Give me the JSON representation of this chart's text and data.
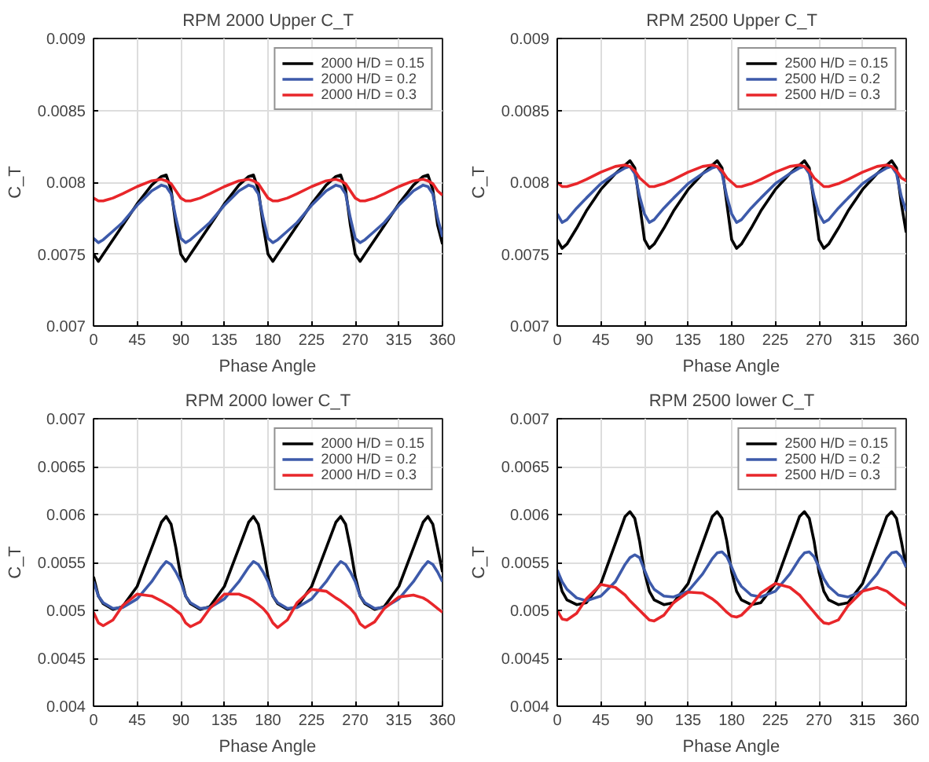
{
  "chart_data": [
    {
      "type": "line",
      "title": "RPM 2000 Upper C_T",
      "xlabel": "Phase Angle",
      "ylabel": "C_T",
      "xlim": [
        0,
        360
      ],
      "xticks": [
        0,
        45,
        90,
        135,
        180,
        225,
        270,
        315,
        360
      ],
      "ylim": [
        0.007,
        0.009
      ],
      "yticks": [
        0.007,
        0.0075,
        0.008,
        0.0085,
        0.009
      ],
      "grid": true,
      "legend": "top right",
      "x": [
        0,
        5,
        10,
        20,
        30,
        45,
        60,
        70,
        75,
        80,
        85,
        90,
        95,
        100,
        110,
        120,
        135,
        150,
        160,
        165,
        170,
        175,
        180,
        185,
        190,
        200,
        210,
        225,
        240,
        250,
        255,
        260,
        265,
        270,
        275,
        280,
        290,
        300,
        315,
        330,
        340,
        345,
        350,
        355,
        360
      ],
      "series": [
        {
          "name": "2000 H/D = 0.15",
          "color": "#000000",
          "values": [
            0.0075,
            0.00745,
            0.0075,
            0.0076,
            0.0077,
            0.00785,
            0.00798,
            0.00804,
            0.00805,
            0.00795,
            0.0077,
            0.0075,
            0.00745,
            0.0075,
            0.0076,
            0.0077,
            0.00785,
            0.00798,
            0.00804,
            0.00805,
            0.00795,
            0.0077,
            0.0075,
            0.00745,
            0.0075,
            0.0076,
            0.0077,
            0.00785,
            0.00798,
            0.00804,
            0.00805,
            0.00795,
            0.0077,
            0.0075,
            0.00745,
            0.0075,
            0.0076,
            0.0077,
            0.00785,
            0.00798,
            0.00804,
            0.00805,
            0.00795,
            0.0077,
            0.00757
          ]
        },
        {
          "name": "2000 H/D = 0.2",
          "color": "#3d5aaa",
          "values": [
            0.00761,
            0.00758,
            0.0076,
            0.00766,
            0.00772,
            0.00784,
            0.00794,
            0.00798,
            0.00797,
            0.00792,
            0.00775,
            0.00761,
            0.00758,
            0.0076,
            0.00766,
            0.00772,
            0.00784,
            0.00794,
            0.00798,
            0.00797,
            0.00792,
            0.00775,
            0.00761,
            0.00758,
            0.0076,
            0.00766,
            0.00772,
            0.00784,
            0.00794,
            0.00798,
            0.00797,
            0.00792,
            0.00775,
            0.00761,
            0.00758,
            0.0076,
            0.00766,
            0.00772,
            0.00784,
            0.00794,
            0.00798,
            0.00797,
            0.00792,
            0.00775,
            0.00762
          ]
        },
        {
          "name": "2000 H/D = 0.3",
          "color": "#e8262a",
          "values": [
            0.00789,
            0.00787,
            0.00787,
            0.00789,
            0.00792,
            0.00797,
            0.00801,
            0.00802,
            0.00801,
            0.00799,
            0.00794,
            0.00789,
            0.00787,
            0.00787,
            0.00789,
            0.00792,
            0.00797,
            0.00801,
            0.00802,
            0.00801,
            0.00799,
            0.00794,
            0.00789,
            0.00787,
            0.00787,
            0.00789,
            0.00792,
            0.00797,
            0.00801,
            0.00802,
            0.00801,
            0.00799,
            0.00794,
            0.00789,
            0.00787,
            0.00787,
            0.00789,
            0.00792,
            0.00797,
            0.00801,
            0.00802,
            0.00801,
            0.00799,
            0.00794,
            0.00791
          ]
        }
      ]
    },
    {
      "type": "line",
      "title": "RPM 2500 Upper C_T",
      "xlabel": "Phase Angle",
      "ylabel": "C_T",
      "xlim": [
        0,
        360
      ],
      "xticks": [
        0,
        45,
        90,
        135,
        180,
        225,
        270,
        315,
        360
      ],
      "ylim": [
        0.007,
        0.009
      ],
      "yticks": [
        0.007,
        0.0075,
        0.008,
        0.0085,
        0.009
      ],
      "grid": true,
      "legend": "top right",
      "x": [
        0,
        5,
        10,
        20,
        30,
        45,
        60,
        70,
        75,
        80,
        85,
        90,
        95,
        100,
        110,
        120,
        135,
        150,
        160,
        165,
        170,
        175,
        180,
        185,
        190,
        200,
        210,
        225,
        240,
        250,
        255,
        260,
        265,
        270,
        275,
        280,
        290,
        300,
        315,
        330,
        340,
        345,
        350,
        355,
        360
      ],
      "series": [
        {
          "name": "2500 H/D = 0.15",
          "color": "#000000",
          "values": [
            0.0076,
            0.00754,
            0.00757,
            0.00768,
            0.0078,
            0.00795,
            0.00806,
            0.00812,
            0.00815,
            0.0081,
            0.00785,
            0.0076,
            0.00754,
            0.00757,
            0.00768,
            0.0078,
            0.00795,
            0.00806,
            0.00812,
            0.00815,
            0.0081,
            0.00785,
            0.0076,
            0.00754,
            0.00757,
            0.00768,
            0.0078,
            0.00795,
            0.00806,
            0.00812,
            0.00815,
            0.0081,
            0.00785,
            0.0076,
            0.00754,
            0.00757,
            0.00768,
            0.0078,
            0.00795,
            0.00806,
            0.00812,
            0.00815,
            0.0081,
            0.00785,
            0.00765
          ]
        },
        {
          "name": "2500 H/D = 0.2",
          "color": "#3d5aaa",
          "values": [
            0.00778,
            0.00772,
            0.00774,
            0.00782,
            0.00789,
            0.00799,
            0.00806,
            0.0081,
            0.00811,
            0.00806,
            0.0079,
            0.00778,
            0.00772,
            0.00774,
            0.00782,
            0.00789,
            0.00799,
            0.00806,
            0.0081,
            0.00811,
            0.00806,
            0.0079,
            0.00778,
            0.00772,
            0.00774,
            0.00782,
            0.00789,
            0.00799,
            0.00806,
            0.0081,
            0.00811,
            0.00806,
            0.0079,
            0.00778,
            0.00772,
            0.00774,
            0.00782,
            0.00789,
            0.00799,
            0.00806,
            0.0081,
            0.00811,
            0.00806,
            0.0079,
            0.0078
          ]
        },
        {
          "name": "2500 H/D = 0.3",
          "color": "#e8262a",
          "values": [
            0.008,
            0.00797,
            0.00797,
            0.00799,
            0.00802,
            0.00807,
            0.00811,
            0.00812,
            0.00811,
            0.00808,
            0.00803,
            0.008,
            0.00797,
            0.00797,
            0.00799,
            0.00802,
            0.00807,
            0.00811,
            0.00812,
            0.00811,
            0.00808,
            0.00803,
            0.008,
            0.00797,
            0.00797,
            0.00799,
            0.00802,
            0.00807,
            0.00811,
            0.00812,
            0.00811,
            0.00808,
            0.00803,
            0.008,
            0.00797,
            0.00797,
            0.00799,
            0.00802,
            0.00807,
            0.00811,
            0.00812,
            0.00811,
            0.00808,
            0.00803,
            0.00801
          ]
        }
      ]
    },
    {
      "type": "line",
      "title": "RPM 2000 lower C_T",
      "xlabel": "Phase Angle",
      "ylabel": "C_T",
      "xlim": [
        0,
        360
      ],
      "xticks": [
        0,
        45,
        90,
        135,
        180,
        225,
        270,
        315,
        360
      ],
      "ylim": [
        0.004,
        0.007
      ],
      "yticks": [
        0.004,
        0.0045,
        0.005,
        0.0055,
        0.006,
        0.0065,
        0.007
      ],
      "grid": true,
      "legend": "top right",
      "x": [
        0,
        5,
        10,
        20,
        30,
        45,
        60,
        70,
        75,
        80,
        85,
        90,
        95,
        100,
        110,
        120,
        135,
        150,
        160,
        165,
        170,
        175,
        180,
        185,
        190,
        200,
        210,
        225,
        240,
        250,
        255,
        260,
        265,
        270,
        275,
        280,
        290,
        300,
        315,
        330,
        340,
        345,
        350,
        355,
        360
      ],
      "series": [
        {
          "name": "2000 H/D = 0.15",
          "color": "#000000",
          "values": [
            0.00535,
            0.00515,
            0.00507,
            0.00501,
            0.00504,
            0.00525,
            0.00565,
            0.00592,
            0.00598,
            0.0059,
            0.00565,
            0.00535,
            0.00515,
            0.00507,
            0.00501,
            0.00504,
            0.00525,
            0.00565,
            0.00592,
            0.00598,
            0.0059,
            0.00565,
            0.00535,
            0.00515,
            0.00507,
            0.00501,
            0.00504,
            0.00525,
            0.00565,
            0.00592,
            0.00598,
            0.0059,
            0.00565,
            0.00535,
            0.00515,
            0.00507,
            0.00501,
            0.00504,
            0.00525,
            0.00565,
            0.00592,
            0.00598,
            0.0059,
            0.00565,
            0.0054
          ]
        },
        {
          "name": "2000 H/D = 0.2",
          "color": "#3d5aaa",
          "values": [
            0.0053,
            0.00515,
            0.00508,
            0.00502,
            0.00503,
            0.00512,
            0.0053,
            0.00545,
            0.00551,
            0.00548,
            0.0054,
            0.0053,
            0.00515,
            0.00508,
            0.00502,
            0.00503,
            0.00512,
            0.0053,
            0.00545,
            0.00551,
            0.00548,
            0.0054,
            0.0053,
            0.00515,
            0.00508,
            0.00502,
            0.00503,
            0.00512,
            0.0053,
            0.00545,
            0.00551,
            0.00548,
            0.0054,
            0.0053,
            0.00515,
            0.00508,
            0.00502,
            0.00503,
            0.00512,
            0.0053,
            0.00545,
            0.00551,
            0.00548,
            0.0054,
            0.0053
          ]
        },
        {
          "name": "2000 H/D = 0.3",
          "color": "#e8262a",
          "values": [
            0.00498,
            0.00487,
            0.00484,
            0.0049,
            0.00505,
            0.00517,
            0.00515,
            0.0051,
            0.00507,
            0.00504,
            0.005,
            0.00496,
            0.00487,
            0.00483,
            0.00488,
            0.00502,
            0.00517,
            0.00517,
            0.00513,
            0.0051,
            0.00506,
            0.00502,
            0.00496,
            0.00487,
            0.00482,
            0.0049,
            0.00508,
            0.00522,
            0.0052,
            0.00513,
            0.0051,
            0.00506,
            0.00502,
            0.00496,
            0.00486,
            0.00482,
            0.00488,
            0.00502,
            0.00514,
            0.00516,
            0.00513,
            0.0051,
            0.00506,
            0.00502,
            0.00498
          ]
        }
      ]
    },
    {
      "type": "line",
      "title": "RPM 2500 lower C_T",
      "xlabel": "Phase Angle",
      "ylabel": "C_T",
      "xlim": [
        0,
        360
      ],
      "xticks": [
        0,
        45,
        90,
        135,
        180,
        225,
        270,
        315,
        360
      ],
      "ylim": [
        0.004,
        0.007
      ],
      "yticks": [
        0.004,
        0.0045,
        0.005,
        0.0055,
        0.006,
        0.0065,
        0.007
      ],
      "grid": true,
      "legend": "top right",
      "x": [
        0,
        5,
        10,
        20,
        30,
        45,
        60,
        70,
        75,
        80,
        85,
        90,
        95,
        100,
        110,
        120,
        135,
        150,
        160,
        165,
        170,
        175,
        180,
        185,
        190,
        200,
        210,
        225,
        240,
        250,
        255,
        260,
        265,
        270,
        275,
        280,
        290,
        300,
        315,
        330,
        340,
        345,
        350,
        355,
        360
      ],
      "series": [
        {
          "name": "2500 H/D = 0.15",
          "color": "#000000",
          "values": [
            0.0054,
            0.0052,
            0.00511,
            0.00506,
            0.00508,
            0.00528,
            0.0057,
            0.00598,
            0.00603,
            0.00596,
            0.00572,
            0.0054,
            0.0052,
            0.00511,
            0.00506,
            0.00508,
            0.00528,
            0.0057,
            0.00598,
            0.00603,
            0.00596,
            0.00572,
            0.0054,
            0.0052,
            0.00511,
            0.00506,
            0.00508,
            0.00528,
            0.0057,
            0.00598,
            0.00603,
            0.00596,
            0.00572,
            0.0054,
            0.0052,
            0.00511,
            0.00506,
            0.00508,
            0.00528,
            0.0057,
            0.00598,
            0.00603,
            0.00596,
            0.00572,
            0.00545
          ]
        },
        {
          "name": "2500 H/D = 0.2",
          "color": "#3d5aaa",
          "values": [
            0.00542,
            0.0053,
            0.00522,
            0.00513,
            0.0051,
            0.00515,
            0.0053,
            0.00548,
            0.00555,
            0.00558,
            0.00555,
            0.00542,
            0.0053,
            0.00522,
            0.00515,
            0.00514,
            0.0052,
            0.00538,
            0.00554,
            0.0056,
            0.00561,
            0.00556,
            0.00545,
            0.00533,
            0.00525,
            0.00516,
            0.00514,
            0.0052,
            0.00538,
            0.00554,
            0.0056,
            0.00561,
            0.00556,
            0.00545,
            0.00533,
            0.00525,
            0.00516,
            0.00514,
            0.0052,
            0.00538,
            0.00554,
            0.0056,
            0.00561,
            0.00556,
            0.00545
          ]
        },
        {
          "name": "2500 H/D = 0.3",
          "color": "#e8262a",
          "values": [
            0.005,
            0.00491,
            0.0049,
            0.00497,
            0.00512,
            0.00527,
            0.00524,
            0.00516,
            0.0051,
            0.00505,
            0.005,
            0.00495,
            0.0049,
            0.00489,
            0.00495,
            0.00508,
            0.00519,
            0.00518,
            0.00512,
            0.00508,
            0.00503,
            0.00498,
            0.00494,
            0.00493,
            0.00495,
            0.00505,
            0.00518,
            0.00528,
            0.00524,
            0.00516,
            0.0051,
            0.00504,
            0.00498,
            0.00492,
            0.00487,
            0.00486,
            0.0049,
            0.00505,
            0.0052,
            0.00524,
            0.0052,
            0.00516,
            0.00512,
            0.00508,
            0.00505
          ]
        }
      ]
    }
  ]
}
